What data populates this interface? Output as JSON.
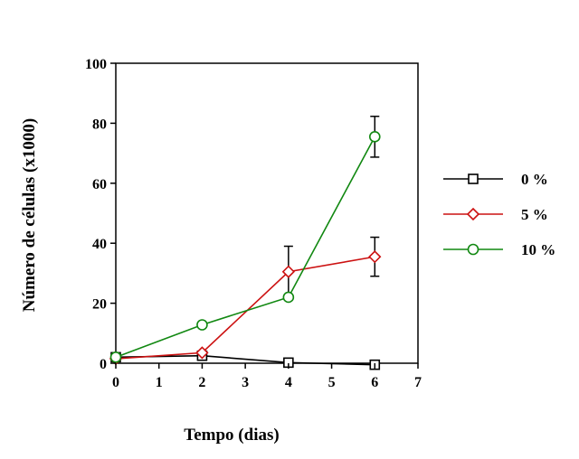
{
  "chart_data": {
    "type": "line",
    "xlabel": "Tempo (dias)",
    "ylabel": "Número de células (x1000)",
    "xlim": [
      0,
      7
    ],
    "ylim": [
      0,
      100
    ],
    "xticks": [
      0,
      1,
      2,
      3,
      4,
      5,
      6,
      7
    ],
    "yticks": [
      0,
      20,
      40,
      60,
      80,
      100
    ],
    "grid": false,
    "legend_position": "right",
    "series": [
      {
        "name": "0 %",
        "color": "#000000",
        "marker": "square",
        "x": [
          0,
          2,
          4,
          6
        ],
        "y": [
          2,
          2.5,
          0.2,
          -0.5
        ],
        "error": [
          0,
          0,
          0,
          0
        ]
      },
      {
        "name": "5 %",
        "color": "#cc1111",
        "marker": "diamond",
        "x": [
          0,
          2,
          4,
          6
        ],
        "y": [
          1.5,
          3.5,
          30.5,
          35.5
        ],
        "error": [
          0,
          0,
          8.5,
          6.5
        ]
      },
      {
        "name": "10 %",
        "color": "#118811",
        "marker": "circle",
        "x": [
          0,
          2,
          4,
          6
        ],
        "y": [
          2,
          12.8,
          22,
          75.5
        ],
        "error": [
          0,
          0,
          0,
          6.8
        ]
      }
    ]
  }
}
